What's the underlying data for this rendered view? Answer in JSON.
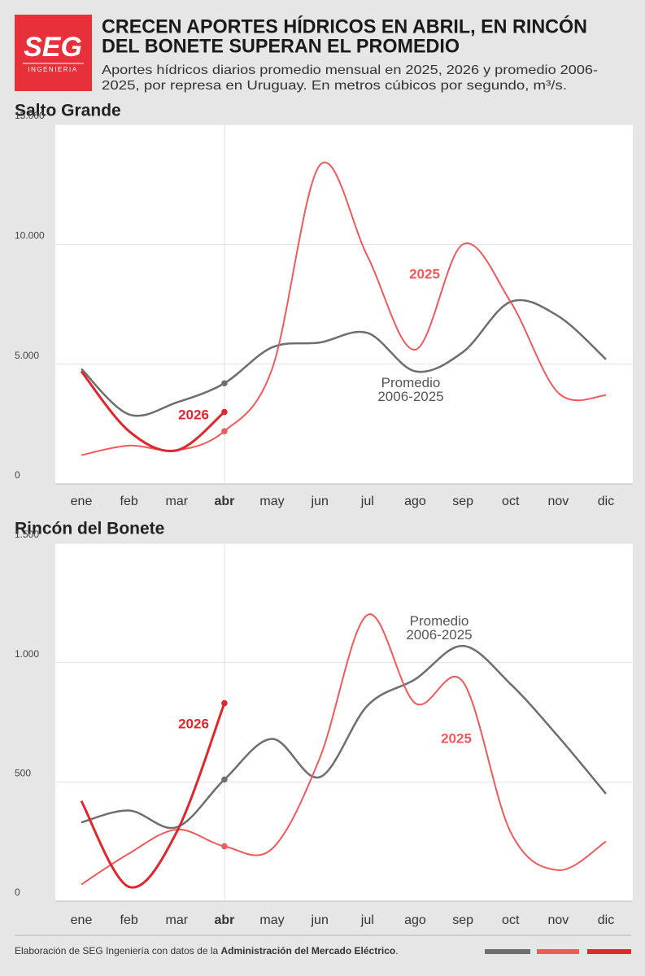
{
  "header": {
    "title": [
      "CRECEN APORTES HÍDRICOS EN ABRIL, EN RINCÓN",
      "DEL BONETE SUPERAN EL PROMEDIO"
    ],
    "subtitle": [
      "Aportes hídricos diarios promedio mensual en 2025, 2026 y promedio 2006-",
      "2025, por represa en Uruguay. En metros cúbicos por segundo, m³/s."
    ],
    "logo": {
      "name": "SEG",
      "tagline": "INGENIERIA"
    }
  },
  "chart_data": [
    {
      "type": "line",
      "title": "Salto Grande",
      "categories": [
        "ene",
        "feb",
        "mar",
        "abr",
        "may",
        "jun",
        "jul",
        "ago",
        "sep",
        "oct",
        "nov",
        "dic"
      ],
      "ylim": [
        0,
        15000
      ],
      "yticks": [
        0,
        {
          "value": 5000,
          "label": "5.000"
        },
        {
          "value": 10000,
          "label": "10.000"
        },
        {
          "value": 15000,
          "label": "15.000"
        }
      ],
      "grid": true,
      "series": [
        {
          "name": "Promedio 2006-2025",
          "color": "#6d6e70",
          "values": [
            4800,
            2900,
            3400,
            4200,
            5700,
            5900,
            6300,
            4700,
            5500,
            7600,
            7000,
            5200
          ]
        },
        {
          "name": "2025",
          "color": "#f1595c",
          "values": [
            1200,
            1600,
            1400,
            2200,
            4800,
            13300,
            9500,
            5600,
            10000,
            7600,
            3800,
            3700
          ]
        },
        {
          "name": "2026",
          "color": "#e1262d",
          "values": [
            4700,
            2200,
            1400,
            3000,
            null,
            null,
            null,
            null,
            null,
            null,
            null,
            null
          ]
        }
      ]
    },
    {
      "type": "line",
      "title": "Rincón del Bonete",
      "categories": [
        "ene",
        "feb",
        "mar",
        "abr",
        "may",
        "jun",
        "jul",
        "ago",
        "sep",
        "oct",
        "nov",
        "dic"
      ],
      "ylim": [
        0,
        1500
      ],
      "yticks": [
        0,
        500,
        {
          "value": 1000,
          "label": "1.000"
        },
        {
          "value": 1500,
          "label": "1.500"
        }
      ],
      "grid": true,
      "series": [
        {
          "name": "Promedio 2006-2025",
          "color": "#6d6e70",
          "values": [
            330,
            380,
            310,
            510,
            680,
            520,
            820,
            930,
            1070,
            910,
            690,
            450
          ]
        },
        {
          "name": "2025",
          "color": "#f1595c",
          "values": [
            70,
            200,
            300,
            230,
            220,
            600,
            1200,
            830,
            920,
            290,
            130,
            250
          ]
        },
        {
          "name": "2026",
          "color": "#e1262d",
          "values": [
            420,
            60,
            290,
            830,
            null,
            null,
            null,
            null,
            null,
            null,
            null,
            null
          ]
        }
      ]
    }
  ],
  "footer": {
    "source": [
      "Elaboración de SEG Ingeniería con datos de la ",
      "Administración del Mercado Eléctrico",
      "."
    ]
  }
}
